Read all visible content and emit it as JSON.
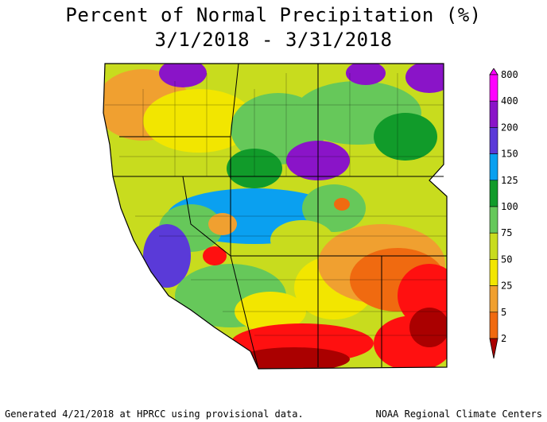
{
  "title": {
    "line1": "Percent of Normal Precipitation (%)",
    "line2": "3/1/2018 - 3/31/2018"
  },
  "legend": {
    "stops": [
      {
        "label": "800",
        "color": "#ff00ff"
      },
      {
        "label": "400",
        "color": "#8a14c8"
      },
      {
        "label": "200",
        "color": "#5a3ad8"
      },
      {
        "label": "150",
        "color": "#0aa0f0"
      },
      {
        "label": "125",
        "color": "#119b2a"
      },
      {
        "label": "100",
        "color": "#66c85a"
      },
      {
        "label": "75",
        "color": "#c8dc1e"
      },
      {
        "label": "50",
        "color": "#f2e600"
      },
      {
        "label": "25",
        "color": "#f0a030"
      },
      {
        "label": "5",
        "color": "#f06a10"
      },
      {
        "label": "2",
        "color": "#ff1010"
      }
    ],
    "bottom_color": "#aa0000"
  },
  "footer": {
    "left": "Generated 4/21/2018 at HPRCC using provisional data.",
    "right": "NOAA Regional Climate Centers"
  }
}
